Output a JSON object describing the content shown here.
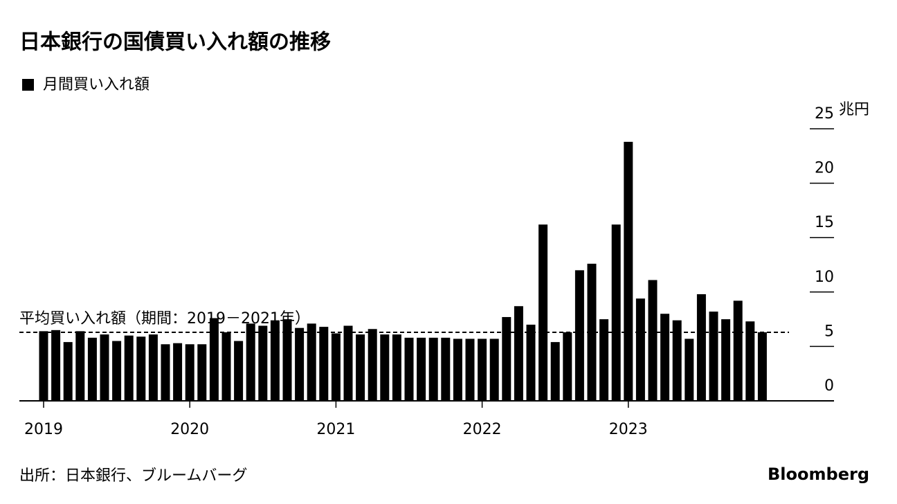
{
  "chart_data": {
    "type": "bar",
    "title": "日本銀行の国債買い入れ額の推移",
    "categories": [
      "2019",
      null,
      null,
      null,
      null,
      null,
      null,
      null,
      null,
      null,
      null,
      null,
      "2020",
      null,
      null,
      null,
      null,
      null,
      null,
      null,
      null,
      null,
      null,
      null,
      "2021",
      null,
      null,
      null,
      null,
      null,
      null,
      null,
      null,
      null,
      null,
      null,
      "2022",
      null,
      null,
      null,
      null,
      null,
      null,
      null,
      null,
      null,
      null,
      null,
      "2023",
      null,
      null,
      null,
      null,
      null,
      null,
      null,
      null,
      null,
      null,
      null
    ],
    "series": [
      {
        "name": "月間買い入れ額",
        "color": "#000000",
        "values": [
          6.4,
          6.5,
          5.4,
          6.4,
          5.8,
          6.1,
          5.5,
          6.0,
          5.9,
          6.1,
          5.2,
          5.3,
          5.2,
          5.2,
          7.6,
          6.3,
          5.5,
          7.1,
          6.9,
          7.4,
          7.5,
          6.7,
          7.1,
          6.8,
          6.2,
          6.9,
          6.1,
          6.6,
          6.1,
          6.1,
          5.8,
          5.8,
          5.8,
          5.8,
          5.7,
          5.7,
          5.7,
          5.7,
          7.7,
          8.7,
          7.0,
          16.2,
          5.4,
          6.3,
          12.0,
          12.6,
          7.5,
          16.2,
          23.8,
          9.4,
          11.1,
          8.0,
          7.4,
          5.7,
          9.8,
          8.2,
          7.5,
          9.2,
          7.3,
          6.3
        ]
      }
    ],
    "reference_line": {
      "value": 6.3,
      "label": "平均買い入れ額（期間：2019－2021年）"
    },
    "ylim": [
      0,
      25
    ],
    "yticks": [
      0,
      5,
      10,
      15,
      20,
      25
    ],
    "y_unit": "兆円",
    "source": "出所：日本銀行、ブルームバーグ",
    "brand": "Bloomberg"
  }
}
